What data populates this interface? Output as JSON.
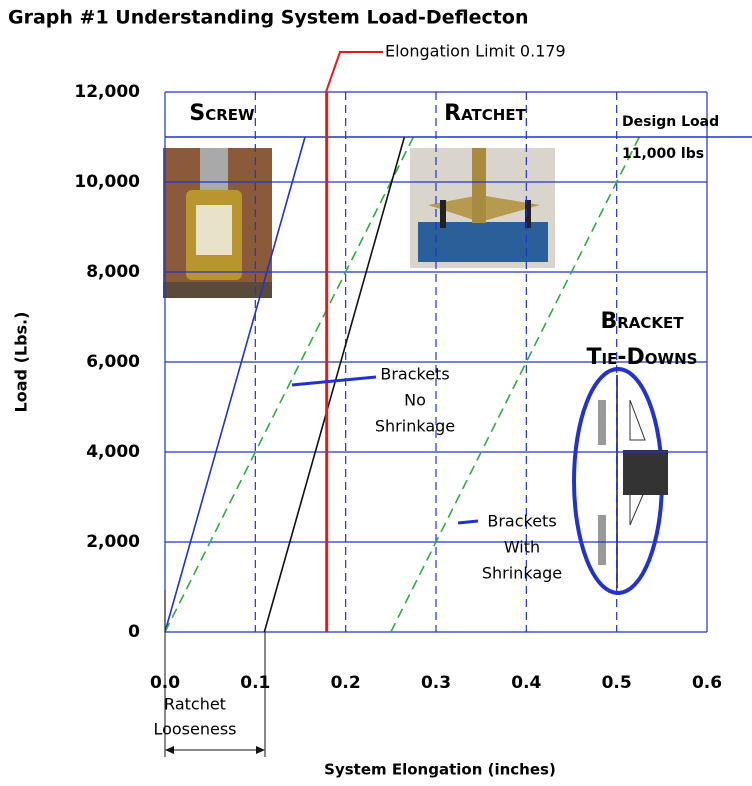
{
  "chart_data": {
    "type": "line",
    "title": "Graph #1 Understanding System Load-Deflecton",
    "x_label": "System Elongation (inches)",
    "y_label": "Load (Lbs.)",
    "xlim": [
      0,
      0.6
    ],
    "ylim": [
      0,
      12000
    ],
    "xticks": [
      {
        "value": 0,
        "label": "0.0"
      },
      0.1,
      0.2,
      0.3,
      0.4,
      0.5,
      0.6
    ],
    "yticks": [
      0,
      {
        "value": 2000,
        "label": "2,000"
      },
      {
        "value": 4000,
        "label": "4,000"
      },
      {
        "value": 6000,
        "label": "6,000"
      },
      {
        "value": 8000,
        "label": "8,000"
      },
      {
        "value": 10000,
        "label": "10,000"
      },
      {
        "value": 12000,
        "label": "12,000"
      }
    ],
    "grid": true,
    "grid_color": "#2233cc",
    "series": [
      {
        "color": "#2233cc",
        "dash": false,
        "x": [
          0,
          0.155
        ],
        "values": [
          0,
          11000
        ]
      },
      {
        "color": "#33aa44",
        "dash": true,
        "x": [
          0,
          0.275
        ],
        "values": [
          0,
          11000
        ]
      },
      {
        "color": "#111111",
        "dash": false,
        "x": [
          0.11,
          0.265
        ],
        "values": [
          0,
          11000
        ]
      },
      {
        "color": "#33aa44",
        "dash": true,
        "x": [
          0.25,
          0.525
        ],
        "values": [
          0,
          11000
        ]
      }
    ],
    "vlines": [
      {
        "value": 0.179,
        "color": "#e8191c"
      }
    ],
    "hlines": [
      {
        "value": 11000,
        "color": "#2233cc"
      }
    ],
    "annotations": [
      {
        "lines": [
          "Elongation Limit 0.179"
        ]
      },
      {
        "lines": [
          "Screw"
        ]
      },
      {
        "lines": [
          "Ratchet"
        ]
      },
      {
        "lines": [
          "Design Load",
          "11,000 lbs"
        ]
      },
      {
        "lines": [
          "Bracket",
          "Tie-Downs"
        ]
      },
      {
        "lines": [
          "Brackets",
          "No",
          "Shrinkage"
        ]
      },
      {
        "lines": [
          "Brackets",
          "With",
          "Shrinkage"
        ]
      },
      {
        "lines": [
          "Ratchet",
          "Looseness"
        ]
      }
    ]
  }
}
